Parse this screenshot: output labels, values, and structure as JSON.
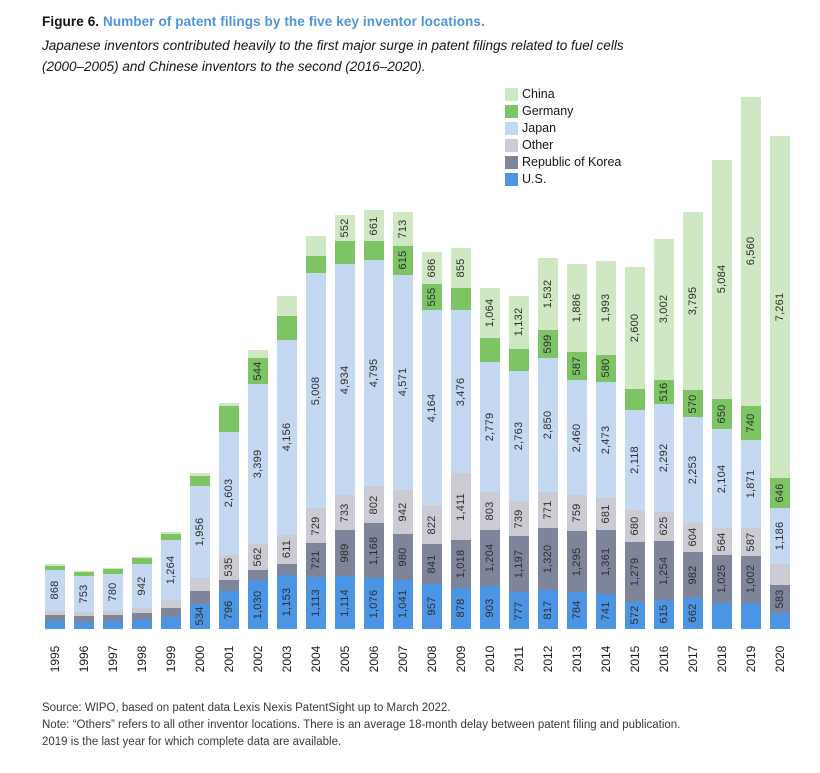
{
  "figure": {
    "label": "Figure 6.",
    "title": "Number of patent filings by the five key inventor locations.",
    "subtitle_line1": "Japanese inventors contributed heavily to the first major surge in patent filings related to fuel cells",
    "subtitle_line2": "(2000–2005) and Chinese inventors to the second (2016–2020)."
  },
  "colors": {
    "title_accent": "#4e94d9",
    "china": "#cfe7c2",
    "germany": "#7cc464",
    "japan": "#c5d8f1",
    "other": "#cbccd3",
    "republic_of_korea": "#7e8499",
    "us": "#4c95e4"
  },
  "chart_data": {
    "type": "bar",
    "stacked": true,
    "title": "Number of patent filings by the five key inventor locations",
    "xlabel": "Year",
    "ylabel": "Number of patent filings",
    "grid": false,
    "legend_position": "top-right",
    "legend_order_top_to_bottom": [
      "China",
      "Germany",
      "Japan",
      "Other",
      "Republic of Korea",
      "U.S."
    ],
    "categories": [
      "1995",
      "1996",
      "1997",
      "1998",
      "1999",
      "2000",
      "2001",
      "2002",
      "2003",
      "2004",
      "2005",
      "2006",
      "2007",
      "2008",
      "2009",
      "2010",
      "2011",
      "2012",
      "2013",
      "2014",
      "2015",
      "2016",
      "2017",
      "2018",
      "2019",
      "2020"
    ],
    "series_order_bottom_to_top": [
      "U.S.",
      "Republic of Korea",
      "Other",
      "Japan",
      "Germany",
      "China"
    ],
    "series": [
      {
        "name": "U.S.",
        "color": "#4c95e4",
        "values": [
          160,
          150,
          160,
          190,
          250,
          534,
          796,
          1030,
          1153,
          1113,
          1114,
          1076,
          1041,
          957,
          878,
          903,
          777,
          817,
          784,
          741,
          572,
          615,
          662,
          550,
          550,
          340
        ],
        "labels": [
          null,
          null,
          null,
          null,
          null,
          "534",
          "796",
          "1,030",
          "1,153",
          "1,113",
          "1,114",
          "1,076",
          "1,041",
          "957",
          "878",
          "903",
          "777",
          "817",
          "784",
          "741",
          "572",
          "615",
          "662",
          null,
          null,
          null
        ]
      },
      {
        "name": "Republic of Korea",
        "color": "#7e8499",
        "values": [
          130,
          120,
          125,
          140,
          190,
          280,
          250,
          220,
          235,
          721,
          989,
          1168,
          980,
          841,
          1018,
          1204,
          1197,
          1320,
          1295,
          1361,
          1279,
          1254,
          982,
          1025,
          1002,
          583
        ],
        "labels": [
          null,
          null,
          null,
          null,
          null,
          null,
          null,
          null,
          null,
          "721",
          "989",
          "1,168",
          "980",
          "841",
          "1,018",
          "1,204",
          "1,197",
          "1,320",
          "1,295",
          "1,361",
          "1,279",
          "1,254",
          "982",
          "1,025",
          "1,002",
          "583"
        ]
      },
      {
        "name": "Other",
        "color": "#cbccd3",
        "values": [
          100,
          95,
          100,
          115,
          180,
          270,
          535,
          562,
          611,
          729,
          733,
          802,
          942,
          822,
          1411,
          803,
          739,
          771,
          759,
          681,
          680,
          625,
          604,
          564,
          587,
          460
        ],
        "labels": [
          null,
          null,
          null,
          null,
          null,
          null,
          "535",
          "562",
          "611",
          "729",
          "733",
          "802",
          "942",
          "822",
          "1,411",
          "803",
          "739",
          "771",
          "759",
          "681",
          "680",
          "625",
          "604",
          "564",
          "587",
          null
        ]
      },
      {
        "name": "Japan",
        "color": "#c5d8f1",
        "values": [
          868,
          753,
          780,
          942,
          1264,
          1956,
          2603,
          3399,
          4156,
          5008,
          4934,
          4795,
          4571,
          4164,
          3476,
          2779,
          2763,
          2850,
          2460,
          2473,
          2118,
          2292,
          2253,
          2104,
          1871,
          1186
        ],
        "labels": [
          "868",
          "753",
          "780",
          "942",
          "1,264",
          "1,956",
          "2,603",
          "3,399",
          "4,156",
          "5,008",
          "4,934",
          "4,795",
          "4,571",
          "4,164",
          "3,476",
          "2,779",
          "2,763",
          "2,850",
          "2,460",
          "2,473",
          "2,118",
          "2,292",
          "2,253",
          "2,104",
          "1,871",
          "1,186"
        ]
      },
      {
        "name": "Germany",
        "color": "#7cc464",
        "values": [
          90,
          90,
          100,
          110,
          140,
          220,
          550,
          544,
          500,
          360,
          490,
          400,
          615,
          555,
          460,
          500,
          480,
          599,
          587,
          580,
          450,
          516,
          570,
          650,
          740,
          646
        ],
        "labels": [
          null,
          null,
          null,
          null,
          null,
          null,
          null,
          "544",
          null,
          null,
          null,
          null,
          "615",
          "555",
          null,
          null,
          null,
          "599",
          "587",
          "580",
          null,
          "516",
          "570",
          "650",
          "740",
          "646"
        ]
      },
      {
        "name": "China",
        "color": "#cfe7c2",
        "values": [
          25,
          25,
          30,
          30,
          40,
          50,
          80,
          170,
          430,
          420,
          552,
          661,
          713,
          686,
          855,
          1064,
          1132,
          1532,
          1886,
          1993,
          2600,
          3002,
          3795,
          5084,
          6560,
          7261
        ],
        "labels": [
          null,
          null,
          null,
          null,
          null,
          null,
          null,
          null,
          null,
          null,
          "552",
          "661",
          "713",
          "686",
          "855",
          "1,064",
          "1,132",
          "1,532",
          "1,886",
          "1,993",
          "2,600",
          "3,002",
          "3,795",
          "5,084",
          "6,560",
          "7,261"
        ]
      }
    ]
  },
  "source": {
    "line1": "Source: WIPO, based on patent data Lexis Nexis PatentSight up to March 2022.",
    "line2": "Note: “Others” refers to all other inventor locations. There is an average 18-month delay between patent filing and publication.",
    "line3": "2019 is the last year for which complete data are available."
  }
}
